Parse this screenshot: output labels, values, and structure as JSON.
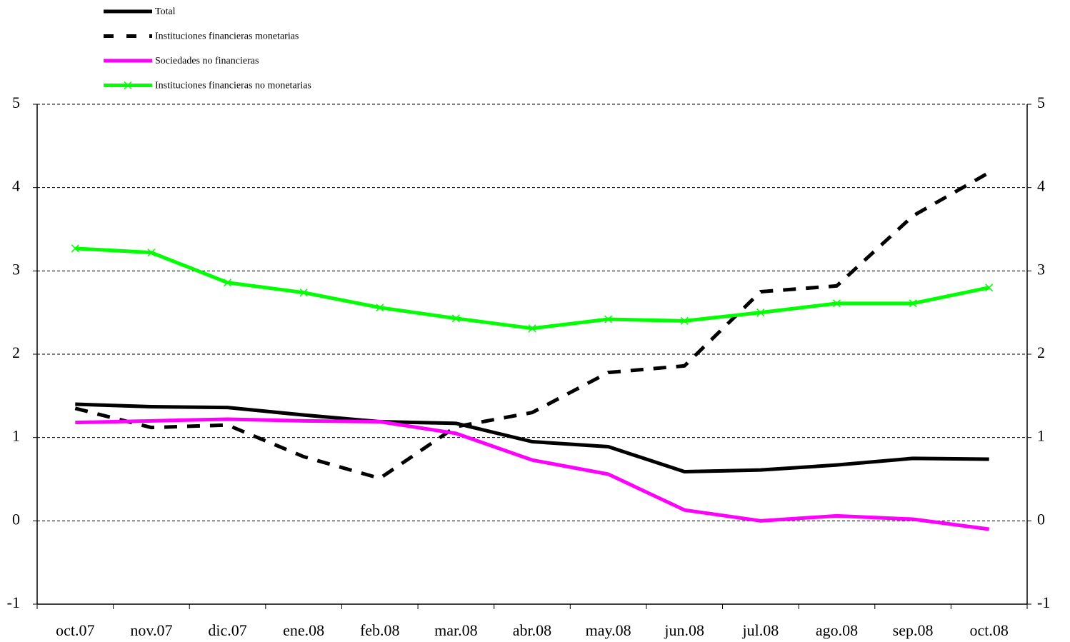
{
  "chart_data": {
    "type": "line",
    "categories": [
      "oct.07",
      "nov.07",
      "dic.07",
      "ene.08",
      "feb.08",
      "mar.08",
      "abr.08",
      "may.08",
      "jun.08",
      "jul.08",
      "ago.08",
      "sep.08",
      "oct.08"
    ],
    "series": [
      {
        "name": "Total",
        "color": "#000000",
        "dash": "solid",
        "values": [
          1.4,
          1.37,
          1.36,
          1.27,
          1.19,
          1.17,
          0.95,
          0.89,
          0.59,
          0.61,
          0.67,
          0.75,
          0.74
        ]
      },
      {
        "name": "Instituciones financieras monetarias",
        "color": "#000000",
        "dash": "dashed",
        "values": [
          1.35,
          1.12,
          1.15,
          0.77,
          0.51,
          1.13,
          1.3,
          1.78,
          1.86,
          2.75,
          2.82,
          3.66,
          4.18
        ]
      },
      {
        "name": "Sociedades no financieras",
        "color": "#ff00ff",
        "dash": "solid",
        "values": [
          1.18,
          1.2,
          1.22,
          1.2,
          1.19,
          1.05,
          0.73,
          0.56,
          0.13,
          0.0,
          0.06,
          0.02,
          -0.1
        ]
      },
      {
        "name": "Instituciones financieras no monetarias",
        "color": "#00ff00",
        "dash": "solid",
        "marker": "x",
        "values": [
          3.27,
          3.22,
          2.86,
          2.74,
          2.56,
          2.43,
          2.31,
          2.42,
          2.4,
          2.5,
          2.61,
          2.61,
          2.8
        ]
      }
    ],
    "ylim": [
      -1,
      5
    ],
    "yticks": [
      -1,
      0,
      1,
      2,
      3,
      4,
      5
    ],
    "y2lim": [
      -1,
      5
    ],
    "y2ticks": [
      -1,
      0,
      1,
      2,
      3,
      4,
      5
    ],
    "grid": true,
    "legend": "top-left"
  }
}
